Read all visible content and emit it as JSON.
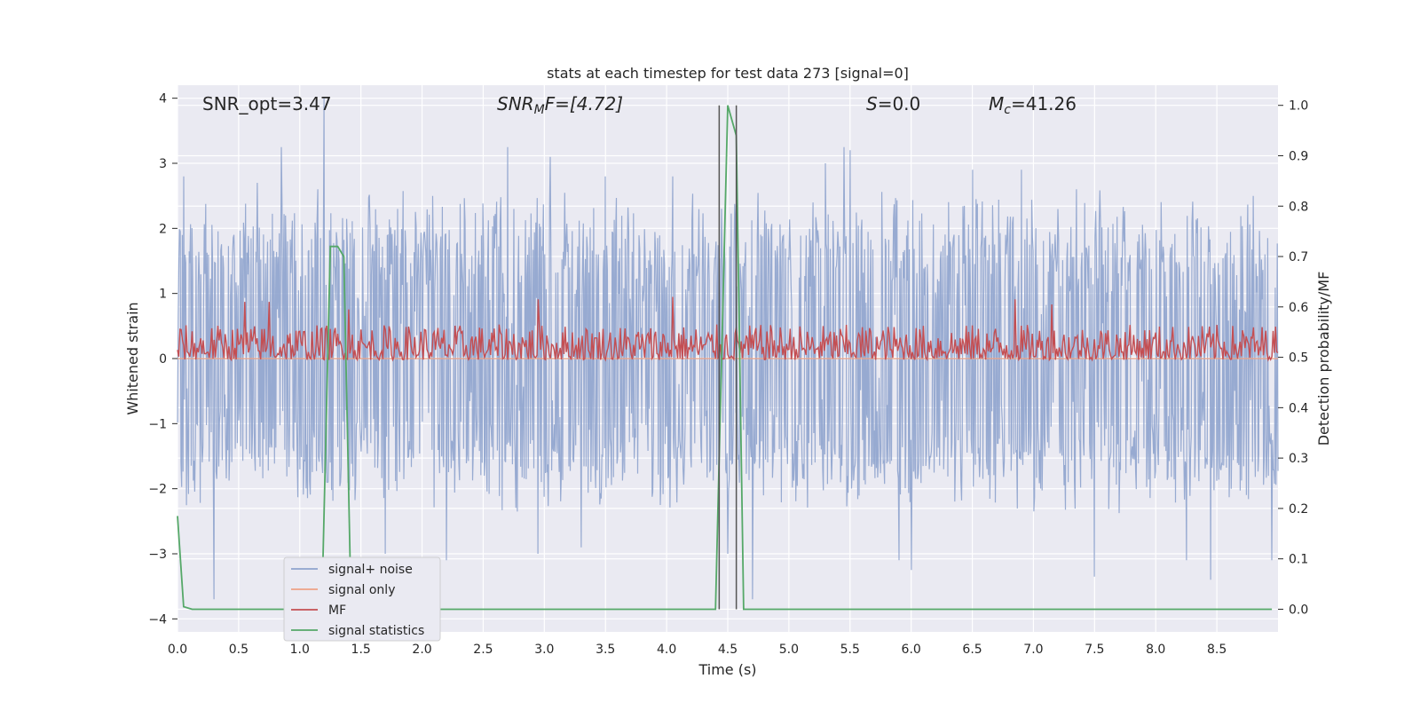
{
  "chart_data": {
    "type": "line",
    "title": "stats at each timestep for test data 273 [signal=0]",
    "xlabel": "Time (s)",
    "ylabel": "Whitened strain",
    "ylabel_right": "Detection probability/MF",
    "xlim": [
      0,
      9.0
    ],
    "ylim": [
      -4.2,
      4.2
    ],
    "ylim_right": [
      -0.045,
      1.04
    ],
    "x_ticks": [
      0.0,
      0.5,
      1.0,
      1.5,
      2.0,
      2.5,
      3.0,
      3.5,
      4.0,
      4.5,
      5.0,
      5.5,
      6.0,
      6.5,
      7.0,
      7.5,
      8.0,
      8.5
    ],
    "x_tick_labels": [
      "0.0",
      "0.5",
      "1.0",
      "1.5",
      "2.0",
      "2.5",
      "3.0",
      "3.5",
      "4.0",
      "4.5",
      "5.0",
      "5.5",
      "6.0",
      "6.5",
      "7.0",
      "7.5",
      "8.0",
      "8.5"
    ],
    "y_ticks": [
      -4,
      -3,
      -2,
      -1,
      0,
      1,
      2,
      3,
      4
    ],
    "y_tick_labels": [
      "−4",
      "−3",
      "−2",
      "−1",
      "0",
      "1",
      "2",
      "3",
      "4"
    ],
    "y_ticks_right": [
      0.0,
      0.1,
      0.2,
      0.3,
      0.4,
      0.5,
      0.6,
      0.7,
      0.8,
      0.9,
      1.0
    ],
    "y_tick_labels_right": [
      "0.0",
      "0.1",
      "0.2",
      "0.3",
      "0.4",
      "0.5",
      "0.6",
      "0.7",
      "0.8",
      "0.9",
      "1.0"
    ],
    "grid": true,
    "legend_position": "lower-left",
    "annotations": {
      "snr_opt": "SNR_opt=3.47",
      "snr_mf_base": "SNR",
      "snr_mf_sub": "M",
      "snr_mf_rest": "F=[4.72]",
      "s_base": "S",
      "s_rest": "=0.0",
      "mc_base": "M",
      "mc_sub": "c",
      "mc_rest": "=41.26"
    },
    "vlines": [
      4.43,
      4.57
    ],
    "series": [
      {
        "name": "signal+ noise",
        "color": "#8ea3cd",
        "axis": "left",
        "kind": "noise",
        "envelope": {
          "positive": 1.7,
          "negative": -1.5
        },
        "spikes": [
          [
            0.05,
            2.8
          ],
          [
            0.3,
            -3.7
          ],
          [
            0.65,
            2.7
          ],
          [
            0.85,
            3.25
          ],
          [
            1.15,
            2.6
          ],
          [
            1.2,
            4.0
          ],
          [
            1.7,
            -3.0
          ],
          [
            2.2,
            -3.1
          ],
          [
            2.7,
            3.25
          ],
          [
            2.95,
            -3.0
          ],
          [
            3.05,
            3.1
          ],
          [
            3.3,
            -2.9
          ],
          [
            3.5,
            2.8
          ],
          [
            4.05,
            2.8
          ],
          [
            4.45,
            2.3
          ],
          [
            4.5,
            -3.0
          ],
          [
            4.7,
            -3.7
          ],
          [
            5.3,
            3.0
          ],
          [
            5.45,
            3.25
          ],
          [
            5.5,
            3.2
          ],
          [
            5.9,
            -3.1
          ],
          [
            6.0,
            -3.25
          ],
          [
            6.5,
            2.9
          ],
          [
            6.9,
            2.9
          ],
          [
            7.35,
            2.6
          ],
          [
            7.5,
            -3.35
          ],
          [
            8.25,
            -3.1
          ],
          [
            8.45,
            -3.4
          ],
          [
            8.8,
            2.5
          ],
          [
            8.95,
            -3.1
          ]
        ]
      },
      {
        "name": "signal only",
        "color": "#eea286",
        "axis": "left",
        "x": [
          0,
          9.0
        ],
        "y": [
          0,
          0
        ]
      },
      {
        "name": "MF",
        "color": "#c44e52",
        "axis": "right",
        "kind": "noise",
        "baseline": 0.5,
        "range": [
          0.495,
          0.6
        ],
        "spikes": [
          [
            0.55,
            0.61
          ],
          [
            0.75,
            0.61
          ],
          [
            1.4,
            0.595
          ],
          [
            2.95,
            0.615
          ],
          [
            4.05,
            0.62
          ],
          [
            6.85,
            0.615
          ],
          [
            7.15,
            0.605
          ]
        ]
      },
      {
        "name": "signal statistics",
        "color": "#55a868",
        "axis": "right",
        "x": [
          0.0,
          0.05,
          0.12,
          1.18,
          1.25,
          1.31,
          1.36,
          1.42,
          4.38,
          4.4,
          4.5,
          4.57,
          4.63,
          4.7,
          8.95
        ],
        "y": [
          0.185,
          0.005,
          0.0,
          0.0,
          0.72,
          0.72,
          0.7,
          0.0,
          0.0,
          0.0,
          1.0,
          0.94,
          0.0,
          0.0,
          0.0
        ]
      }
    ]
  }
}
